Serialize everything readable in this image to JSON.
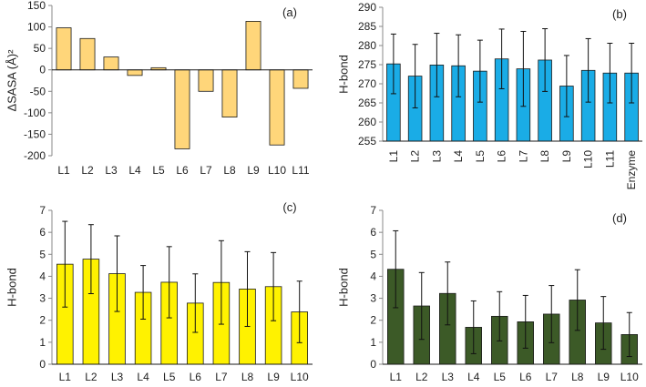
{
  "chart_data": [
    {
      "panel": "(a)",
      "type": "bar",
      "ylabel": "ΔSASA (Å)²",
      "ylim": [
        -200,
        150
      ],
      "yticks": [
        -200,
        -150,
        -100,
        -50,
        0,
        50,
        100,
        150
      ],
      "categories": [
        "L1",
        "L2",
        "L3",
        "L4",
        "L5",
        "L6",
        "L7",
        "L8",
        "L9",
        "L10",
        "L11"
      ],
      "values": [
        98,
        73,
        30,
        -13,
        5,
        -184,
        -50,
        -110,
        113,
        -175,
        -43
      ],
      "color": "#FFD67A",
      "xaxis_position": "top-of-zero-line-with-labels-below-plot"
    },
    {
      "panel": "(b)",
      "type": "bar",
      "ylabel": "H-bond",
      "ylim": [
        255,
        290
      ],
      "yticks": [
        255,
        260,
        265,
        270,
        275,
        280,
        285,
        290
      ],
      "categories": [
        "L1",
        "L2",
        "L3",
        "L4",
        "L5",
        "L6",
        "L7",
        "L8",
        "L9",
        "L10",
        "L11",
        "Enzyme"
      ],
      "values": [
        275.2,
        272.0,
        274.9,
        274.7,
        273.3,
        276.5,
        273.9,
        276.2,
        269.4,
        273.5,
        272.8,
        272.8
      ],
      "errors": [
        7.8,
        8.3,
        8.3,
        8.1,
        8.1,
        7.8,
        9.8,
        8.2,
        8.0,
        8.3,
        7.8,
        7.8
      ],
      "color": "#1AACE6",
      "xlabel_rotation": -90
    },
    {
      "panel": "(c)",
      "type": "bar",
      "ylabel": "H-bond",
      "ylim": [
        0,
        7
      ],
      "yticks": [
        0,
        1,
        2,
        3,
        4,
        5,
        6,
        7
      ],
      "categories": [
        "L1",
        "L2",
        "L3",
        "L4",
        "L5",
        "L6",
        "L7",
        "L8",
        "L9",
        "L10"
      ],
      "values": [
        4.55,
        4.78,
        4.12,
        3.27,
        3.73,
        2.78,
        3.72,
        3.42,
        3.53,
        2.38
      ],
      "errors": [
        1.95,
        1.57,
        1.72,
        1.22,
        1.62,
        1.33,
        1.9,
        1.7,
        1.55,
        1.4
      ],
      "color": "#FFF200"
    },
    {
      "panel": "(d)",
      "type": "bar",
      "ylabel": "H-bond",
      "ylim": [
        0,
        7
      ],
      "yticks": [
        0,
        1,
        2,
        3,
        4,
        5,
        6,
        7
      ],
      "categories": [
        "L1",
        "L2",
        "L3",
        "L4",
        "L5",
        "L6",
        "L7",
        "L8",
        "L9",
        "L10"
      ],
      "values": [
        4.32,
        2.65,
        3.22,
        1.68,
        2.18,
        1.93,
        2.28,
        2.92,
        1.88,
        1.35
      ],
      "errors": [
        1.75,
        1.52,
        1.43,
        1.2,
        1.12,
        1.2,
        1.3,
        1.38,
        1.2,
        1.0
      ],
      "color": "#3C5A27"
    }
  ]
}
